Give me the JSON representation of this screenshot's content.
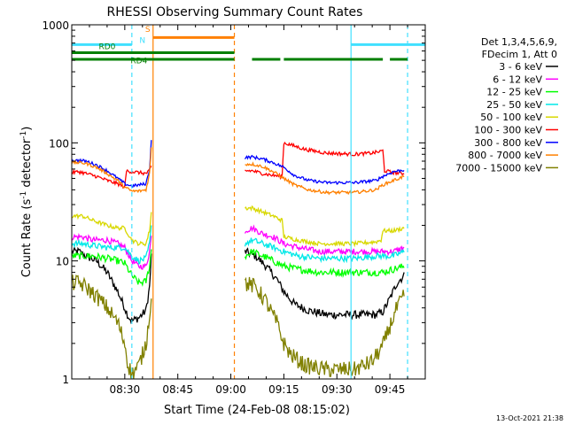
{
  "chart_data": {
    "type": "line",
    "title": "RHESSI Observing Summary Count Rates",
    "xlabel": "Start Time (24-Feb-08 08:15:02)",
    "ylabel_main": "Count Rate (s",
    "ylabel_sup": "-1",
    "ylabel_mid": " detector",
    "ylabel_sup2": "-1",
    "ylabel_end": ")",
    "x_unit": "minutes after 08:15:02",
    "xlim": [
      0,
      100
    ],
    "ylim": [
      1,
      1000
    ],
    "y_scale": "log",
    "x_ticks": [
      {
        "t": 15,
        "label": "08:30"
      },
      {
        "t": 30,
        "label": "08:45"
      },
      {
        "t": 45,
        "label": "09:00"
      },
      {
        "t": 60,
        "label": "09:15"
      },
      {
        "t": 75,
        "label": "09:30"
      },
      {
        "t": 90,
        "label": "09:45"
      }
    ],
    "y_ticks": [
      {
        "v": 1,
        "label": "1"
      },
      {
        "v": 10,
        "label": "10"
      },
      {
        "v": 100,
        "label": "100"
      },
      {
        "v": 1000,
        "label": "1000"
      }
    ],
    "legend_header": [
      "Det 1,3,4,5,6,9,",
      "FDecim 1, Att 0"
    ],
    "legend_position": "right",
    "timestamp": "13-Oct-2021 21:38",
    "flags": [
      {
        "label": "S",
        "color": "#ff8000",
        "segments": [
          [
            23,
            46
          ]
        ],
        "value": 780
      },
      {
        "label": "N",
        "color": "#40e0ff",
        "segments": [
          [
            0,
            17
          ],
          [
            79,
            100
          ]
        ],
        "value": 680
      },
      {
        "label": "RD0",
        "color": "#007f00",
        "segments": [
          [
            0,
            46
          ]
        ],
        "value": 580
      },
      {
        "label": "RD4",
        "color": "#007f00",
        "segments": [
          [
            0,
            46
          ],
          [
            51,
            59
          ],
          [
            60,
            88
          ],
          [
            90,
            95
          ]
        ],
        "value": 510
      }
    ],
    "vlines": [
      {
        "t": 17,
        "color": "#40e0ff",
        "style": "dashed"
      },
      {
        "t": 23,
        "color": "#ff8000",
        "style": "solid"
      },
      {
        "t": 46,
        "color": "#ff8000",
        "style": "dashed"
      },
      {
        "t": 79,
        "color": "#40e0ff",
        "style": "solid"
      },
      {
        "t": 95,
        "color": "#40e0ff",
        "style": "dashed"
      }
    ],
    "series": [
      {
        "name": "3 - 6 keV",
        "color": "#000000",
        "noise": 0.08,
        "segments": [
          {
            "x": [
              0,
              2,
              4,
              7,
              10,
              13,
              15,
              16,
              17,
              19,
              21,
              22,
              22.7
            ],
            "y": [
              12,
              12,
              11,
              10,
              8,
              5.5,
              4,
              3.4,
              3.1,
              3.3,
              3.8,
              6,
              14
            ]
          },
          {
            "x": [
              49,
              52,
              55,
              58,
              60,
              63,
              67,
              72,
              80,
              86,
              88,
              90,
              92,
              94
            ],
            "y": [
              12,
              11,
              9,
              7,
              5.5,
              4.3,
              3.8,
              3.5,
              3.5,
              3.5,
              3.7,
              4.8,
              6.5,
              7.5
            ]
          }
        ]
      },
      {
        "name": "6 - 12 keV",
        "color": "#ff00ff",
        "noise": 0.06,
        "segments": [
          {
            "x": [
              0,
              3,
              6,
              10,
              13,
              15,
              17,
              19,
              21,
              22,
              22.7
            ],
            "y": [
              16,
              16,
              15,
              15,
              14,
              13,
              10,
              9,
              9,
              12,
              18
            ]
          },
          {
            "x": [
              49,
              51,
              54,
              57,
              60,
              64,
              70,
              80,
              86,
              88,
              91,
              94
            ],
            "y": [
              18,
              19,
              17,
              16,
              14,
              13,
              12,
              12,
              12,
              12,
              12,
              13
            ]
          }
        ]
      },
      {
        "name": "12 - 25 keV",
        "color": "#00ff00",
        "noise": 0.07,
        "segments": [
          {
            "x": [
              0,
              3,
              6,
              10,
              13,
              15,
              17,
              19,
              21,
              22,
              22.7
            ],
            "y": [
              11,
              11,
              11,
              10.5,
              10,
              9.5,
              7.5,
              6.5,
              6.7,
              9,
              14
            ]
          },
          {
            "x": [
              49,
              51,
              54,
              57,
              60,
              64,
              70,
              80,
              86,
              88,
              91,
              94
            ],
            "y": [
              11,
              12,
              11,
              10,
              9,
              8.5,
              8,
              8,
              8,
              8,
              8.5,
              9
            ]
          }
        ]
      },
      {
        "name": "25 - 50 keV",
        "color": "#00e8e8",
        "noise": 0.06,
        "segments": [
          {
            "x": [
              0,
              3,
              6,
              10,
              13,
              15,
              17,
              19,
              21,
              22,
              22.7
            ],
            "y": [
              14,
              14,
              13.5,
              13,
              13,
              13,
              11,
              10,
              10.5,
              14,
              22
            ]
          },
          {
            "x": [
              49,
              51,
              54,
              57,
              60,
              64,
              70,
              80,
              86,
              88,
              91,
              94
            ],
            "y": [
              14,
              15,
              14,
              13,
              12,
              11,
              10.5,
              10.5,
              11,
              11,
              11,
              12
            ]
          }
        ]
      },
      {
        "name": "50 - 100 keV",
        "color": "#d8d800",
        "noise": 0.04,
        "segments": [
          {
            "x": [
              0,
              3,
              6,
              10,
              13,
              15,
              17,
              19,
              21,
              22,
              22.7
            ],
            "y": [
              24,
              24,
              22,
              20,
              19,
              19,
              15,
              14,
              14,
              18,
              30
            ]
          },
          {
            "x": [
              49,
              51,
              54,
              57,
              59.5,
              60,
              64,
              70,
              80,
              86,
              87.5,
              88,
              91,
              94
            ],
            "y": [
              28,
              28,
              26,
              24,
              22,
              16,
              15,
              14,
              14,
              14.5,
              15,
              18,
              18,
              19
            ]
          }
        ]
      },
      {
        "name": "100 - 300 keV",
        "color": "#ff0000",
        "noise": 0.035,
        "segments": [
          {
            "x": [
              0,
              2,
              4,
              7,
              10,
              13,
              15,
              15.5,
              17,
              19,
              21,
              22,
              22.7
            ],
            "y": [
              56,
              57,
              55,
              52,
              48,
              45,
              42,
              58,
              57,
              56,
              55,
              58,
              65
            ]
          },
          {
            "x": [
              49,
              51,
              54,
              57,
              59.5,
              60,
              62,
              66,
              72,
              80,
              85,
              87,
              88,
              88.5,
              91,
              94
            ],
            "y": [
              58,
              58,
              55,
              53,
              52,
              100,
              96,
              88,
              82,
              80,
              82,
              84,
              86,
              58,
              56,
              55
            ]
          }
        ]
      },
      {
        "name": "300 - 800 keV",
        "color": "#0000ff",
        "noise": 0.03,
        "segments": [
          {
            "x": [
              0,
              2,
              4,
              7,
              10,
              13,
              15,
              17,
              19,
              21,
              22,
              22.7
            ],
            "y": [
              70,
              71,
              70,
              65,
              58,
              50,
              45,
              43,
              44,
              45,
              60,
              130
            ]
          },
          {
            "x": [
              49,
              51,
              54,
              57,
              60,
              63,
              67,
              72,
              80,
              86,
              88,
              91,
              94
            ],
            "y": [
              75,
              76,
              73,
              68,
              62,
              53,
              48,
              46,
              46,
              48,
              52,
              57,
              59
            ]
          }
        ]
      },
      {
        "name": "800 - 7000 keV",
        "color": "#ff8000",
        "noise": 0.03,
        "segments": [
          {
            "x": [
              0,
              2,
              4,
              7,
              10,
              13,
              15,
              17,
              19,
              21,
              22,
              22.7
            ],
            "y": [
              68,
              68,
              67,
              62,
              55,
              48,
              42,
              39,
              39,
              40,
              55,
              110
            ]
          },
          {
            "x": [
              49,
              51,
              54,
              57,
              60,
              63,
              67,
              72,
              80,
              86,
              88,
              91,
              94
            ],
            "y": [
              66,
              66,
              63,
              57,
              50,
              44,
              40,
              38,
              38,
              40,
              44,
              48,
              52
            ]
          }
        ]
      },
      {
        "name": "7000 - 15000 keV",
        "color": "#808000",
        "noise": 0.16,
        "segments": [
          {
            "x": [
              0,
              2,
              4,
              7,
              10,
              13,
              15,
              16,
              17,
              19,
              21,
              22,
              22.7
            ],
            "y": [
              6.5,
              6.5,
              6,
              5,
              4,
              3,
              2,
              1.3,
              1.1,
              1.3,
              2,
              3.5,
              6
            ]
          },
          {
            "x": [
              49,
              52,
              55,
              58,
              60,
              62,
              66,
              72,
              80,
              85,
              88,
              90,
              92,
              94
            ],
            "y": [
              6.5,
              6,
              4.5,
              3,
              2,
              1.6,
              1.3,
              1.2,
              1.2,
              1.4,
              1.9,
              2.8,
              4,
              5
            ]
          }
        ]
      }
    ]
  }
}
